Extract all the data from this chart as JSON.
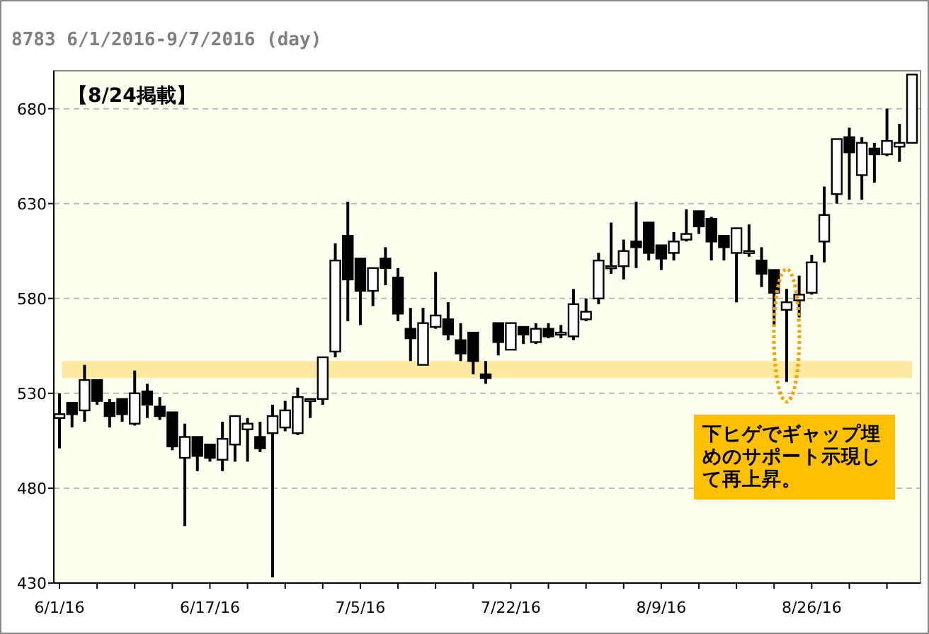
{
  "chart_data": {
    "type": "candlestick",
    "title": "8783 6/1/2016-9/7/2016 (day)",
    "categories": [
      "6/1/16",
      null,
      null,
      null,
      null,
      null,
      null,
      null,
      null,
      null,
      null,
      null,
      "6/17/16",
      null,
      null,
      null,
      null,
      null,
      null,
      null,
      null,
      null,
      null,
      null,
      "7/5/16",
      null,
      null,
      null,
      null,
      null,
      null,
      null,
      null,
      null,
      null,
      null,
      "7/22/16",
      null,
      null,
      null,
      null,
      null,
      null,
      null,
      null,
      null,
      null,
      null,
      "8/9/16",
      null,
      null,
      null,
      null,
      null,
      null,
      null,
      null,
      null,
      null,
      null,
      "8/26/16",
      null,
      null,
      null,
      null,
      null,
      null,
      null,
      null
    ],
    "ohlc": [
      [
        517,
        530,
        501,
        519
      ],
      [
        525,
        525,
        512,
        519
      ],
      [
        521,
        545,
        515,
        537
      ],
      [
        537,
        537,
        524,
        526
      ],
      [
        525,
        527,
        512,
        518
      ],
      [
        527,
        527,
        515,
        519
      ],
      [
        514,
        542,
        513,
        530
      ],
      [
        531,
        535,
        517,
        524
      ],
      [
        523,
        528,
        516,
        518
      ],
      [
        520,
        520,
        500,
        502
      ],
      [
        496,
        514,
        460,
        507
      ],
      [
        507,
        507,
        489,
        497
      ],
      [
        503,
        503,
        494,
        496
      ],
      [
        495,
        515,
        489,
        506
      ],
      [
        503,
        518,
        494,
        518
      ],
      [
        511,
        517,
        494,
        514
      ],
      [
        507,
        515,
        499,
        501
      ],
      [
        509,
        524,
        433,
        518
      ],
      [
        512,
        526,
        510,
        521
      ],
      [
        509,
        533,
        508,
        528
      ],
      [
        526,
        527,
        517,
        527
      ],
      [
        527,
        549,
        524,
        549
      ],
      [
        552,
        609,
        549,
        600
      ],
      [
        613,
        631,
        568,
        590
      ],
      [
        601,
        601,
        566,
        584
      ],
      [
        584,
        596,
        576,
        596
      ],
      [
        601,
        607,
        587,
        596
      ],
      [
        591,
        596,
        568,
        572
      ],
      [
        564,
        575,
        547,
        559
      ],
      [
        545,
        575,
        545,
        567
      ],
      [
        565,
        594,
        564,
        571
      ],
      [
        569,
        578,
        558,
        561
      ],
      [
        558,
        567,
        547,
        551
      ],
      [
        562,
        562,
        540,
        547
      ],
      [
        540,
        547,
        535,
        538
      ],
      [
        567,
        567,
        550,
        557
      ],
      [
        553,
        567,
        553,
        567
      ],
      [
        565,
        565,
        556,
        561
      ],
      [
        557,
        567,
        556,
        564
      ],
      [
        564,
        567,
        559,
        560
      ],
      [
        561,
        566,
        559,
        562
      ],
      [
        560,
        585,
        558,
        577
      ],
      [
        569,
        580,
        568,
        573
      ],
      [
        580,
        604,
        577,
        600
      ],
      [
        596,
        620,
        593,
        597
      ],
      [
        597,
        611,
        590,
        605
      ],
      [
        610,
        631,
        596,
        607
      ],
      [
        620,
        620,
        600,
        604
      ],
      [
        608,
        608,
        595,
        601
      ],
      [
        604,
        615,
        600,
        610
      ],
      [
        611,
        627,
        610,
        614
      ],
      [
        626,
        626,
        614,
        618
      ],
      [
        622,
        623,
        600,
        610
      ],
      [
        613,
        613,
        600,
        607
      ],
      [
        604,
        617,
        578,
        617
      ],
      [
        604,
        619,
        602,
        605
      ],
      [
        600,
        607,
        586,
        593
      ],
      [
        595,
        595,
        566,
        583
      ],
      [
        574,
        585,
        536,
        578
      ],
      [
        579,
        592,
        570,
        582
      ],
      [
        583,
        603,
        582,
        599
      ],
      [
        610,
        639,
        599,
        624
      ],
      [
        635,
        664,
        630,
        664
      ],
      [
        665,
        670,
        632,
        657
      ],
      [
        645,
        665,
        632,
        662
      ],
      [
        659,
        662,
        641,
        656
      ],
      [
        656,
        680,
        655,
        663
      ],
      [
        660,
        672,
        652,
        662
      ],
      [
        662,
        698,
        662,
        698
      ]
    ],
    "ylim": [
      430,
      700
    ],
    "yticks": [
      430,
      480,
      530,
      580,
      630,
      680
    ],
    "grid": "y",
    "bands": [
      {
        "axis": "y",
        "from": 538,
        "to": 547,
        "color": "#fde9a0"
      }
    ],
    "annotations": [
      "【8/24掲載】",
      "下ヒゲでギャップ埋めのサポート示現して再上昇。"
    ]
  }
}
